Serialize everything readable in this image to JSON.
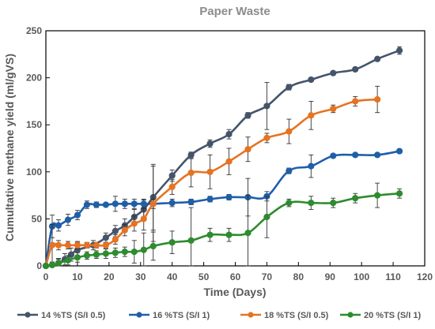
{
  "chart_data": {
    "type": "line",
    "title": "Paper Waste",
    "xlabel": "Time (Days)",
    "ylabel": "Cumultative methane yield (ml/gVS)",
    "xlim": [
      0,
      120
    ],
    "ylim": [
      0,
      250
    ],
    "x_ticks": [
      0,
      10,
      20,
      30,
      40,
      50,
      60,
      70,
      80,
      90,
      100,
      110,
      120
    ],
    "y_ticks": [
      0,
      50,
      100,
      150,
      200,
      250
    ],
    "grid": false,
    "legend_position": "bottom",
    "series": [
      {
        "name": "14 %TS (S/I 0.5)",
        "color": "#44546a",
        "points": [
          {
            "x": 0,
            "y": 0,
            "err": 0
          },
          {
            "x": 2,
            "y": 1,
            "err": 3
          },
          {
            "x": 4,
            "y": 3,
            "err": 5
          },
          {
            "x": 6,
            "y": 7,
            "err": 6
          },
          {
            "x": 8,
            "y": 12,
            "err": 7
          },
          {
            "x": 10,
            "y": 17,
            "err": 8
          },
          {
            "x": 15,
            "y": 22,
            "err": 5
          },
          {
            "x": 19,
            "y": 30,
            "err": 5
          },
          {
            "x": 22,
            "y": 37,
            "err": 6
          },
          {
            "x": 25,
            "y": 43,
            "err": 7
          },
          {
            "x": 28,
            "y": 52,
            "err": 8
          },
          {
            "x": 31,
            "y": 60,
            "err": 10
          },
          {
            "x": 34,
            "y": 73,
            "err": 35
          },
          {
            "x": 40,
            "y": 96,
            "err": 6
          },
          {
            "x": 46,
            "y": 118,
            "err": 3
          },
          {
            "x": 52,
            "y": 130,
            "err": 4
          },
          {
            "x": 58,
            "y": 140,
            "err": 5
          },
          {
            "x": 64,
            "y": 160,
            "err": 3
          },
          {
            "x": 70,
            "y": 170,
            "err": 25
          },
          {
            "x": 77,
            "y": 190,
            "err": 3
          },
          {
            "x": 84,
            "y": 198,
            "err": 2
          },
          {
            "x": 91,
            "y": 205,
            "err": 2
          },
          {
            "x": 98,
            "y": 209,
            "err": 2
          },
          {
            "x": 105,
            "y": 220,
            "err": 2
          },
          {
            "x": 112,
            "y": 229,
            "err": 4
          }
        ]
      },
      {
        "name": "16 %TS (S/I  1)",
        "color": "#1f5fa8",
        "points": [
          {
            "x": 0,
            "y": 0,
            "err": 0
          },
          {
            "x": 2,
            "y": 42,
            "err": 12
          },
          {
            "x": 4,
            "y": 43,
            "err": 6
          },
          {
            "x": 7,
            "y": 49,
            "err": 6
          },
          {
            "x": 10,
            "y": 54,
            "err": 5
          },
          {
            "x": 13,
            "y": 65,
            "err": 4
          },
          {
            "x": 16,
            "y": 65,
            "err": 3
          },
          {
            "x": 19,
            "y": 65,
            "err": 2
          },
          {
            "x": 22,
            "y": 66,
            "err": 8
          },
          {
            "x": 25,
            "y": 66,
            "err": 5
          },
          {
            "x": 28,
            "y": 66,
            "err": 5
          },
          {
            "x": 31,
            "y": 66,
            "err": 5
          },
          {
            "x": 34,
            "y": 66,
            "err": 5
          },
          {
            "x": 40,
            "y": 67,
            "err": 4
          },
          {
            "x": 46,
            "y": 68,
            "err": 3
          },
          {
            "x": 52,
            "y": 71,
            "err": 3
          },
          {
            "x": 58,
            "y": 73,
            "err": 3
          },
          {
            "x": 64,
            "y": 73,
            "err": 20
          },
          {
            "x": 70,
            "y": 74,
            "err": 5
          },
          {
            "x": 77,
            "y": 101,
            "err": 3
          },
          {
            "x": 84,
            "y": 106,
            "err": 12
          },
          {
            "x": 91,
            "y": 117,
            "err": 2
          },
          {
            "x": 98,
            "y": 118,
            "err": 2
          },
          {
            "x": 105,
            "y": 118,
            "err": 2
          },
          {
            "x": 112,
            "y": 122,
            "err": 2
          }
        ]
      },
      {
        "name": "18 %TS (S/I  0.5)",
        "color": "#e67321",
        "points": [
          {
            "x": 0,
            "y": 0,
            "err": 0
          },
          {
            "x": 2,
            "y": 22,
            "err": 22
          },
          {
            "x": 4,
            "y": 22,
            "err": 5
          },
          {
            "x": 7,
            "y": 22,
            "err": 4
          },
          {
            "x": 10,
            "y": 22,
            "err": 4
          },
          {
            "x": 13,
            "y": 22,
            "err": 3
          },
          {
            "x": 16,
            "y": 22,
            "err": 3
          },
          {
            "x": 19,
            "y": 22,
            "err": 3
          },
          {
            "x": 22,
            "y": 28,
            "err": 5
          },
          {
            "x": 25,
            "y": 38,
            "err": 6
          },
          {
            "x": 28,
            "y": 45,
            "err": 8
          },
          {
            "x": 31,
            "y": 50,
            "err": 12
          },
          {
            "x": 34,
            "y": 66,
            "err": 40
          },
          {
            "x": 40,
            "y": 84,
            "err": 8
          },
          {
            "x": 46,
            "y": 99,
            "err": 15
          },
          {
            "x": 52,
            "y": 100,
            "err": 18
          },
          {
            "x": 58,
            "y": 111,
            "err": 14
          },
          {
            "x": 64,
            "y": 124,
            "err": 13
          },
          {
            "x": 70,
            "y": 136,
            "err": 5
          },
          {
            "x": 77,
            "y": 143,
            "err": 13
          },
          {
            "x": 84,
            "y": 160,
            "err": 15
          },
          {
            "x": 91,
            "y": 167,
            "err": 4
          },
          {
            "x": 98,
            "y": 175,
            "err": 5
          },
          {
            "x": 105,
            "y": 177,
            "err": 14
          }
        ]
      },
      {
        "name": "20 %TS (S/I  1)",
        "color": "#2e8b2e",
        "points": [
          {
            "x": 0,
            "y": 0,
            "err": 0
          },
          {
            "x": 2,
            "y": 1,
            "err": 3
          },
          {
            "x": 4,
            "y": 3,
            "err": 4
          },
          {
            "x": 7,
            "y": 6,
            "err": 5
          },
          {
            "x": 10,
            "y": 9,
            "err": 5
          },
          {
            "x": 13,
            "y": 11,
            "err": 4
          },
          {
            "x": 16,
            "y": 12,
            "err": 4
          },
          {
            "x": 19,
            "y": 13,
            "err": 5
          },
          {
            "x": 22,
            "y": 14,
            "err": 5
          },
          {
            "x": 25,
            "y": 15,
            "err": 5
          },
          {
            "x": 28,
            "y": 15,
            "err": 12
          },
          {
            "x": 31,
            "y": 17,
            "err": 18
          },
          {
            "x": 34,
            "y": 21,
            "err": 15
          },
          {
            "x": 40,
            "y": 25,
            "err": 12
          },
          {
            "x": 46,
            "y": 27,
            "err": 35
          },
          {
            "x": 52,
            "y": 33,
            "err": 7
          },
          {
            "x": 58,
            "y": 33,
            "err": 7
          },
          {
            "x": 64,
            "y": 35,
            "err": 40
          },
          {
            "x": 70,
            "y": 52,
            "err": 22
          },
          {
            "x": 77,
            "y": 67,
            "err": 4
          },
          {
            "x": 84,
            "y": 67,
            "err": 7
          },
          {
            "x": 91,
            "y": 67,
            "err": 5
          },
          {
            "x": 98,
            "y": 72,
            "err": 5
          },
          {
            "x": 105,
            "y": 75,
            "err": 13
          },
          {
            "x": 112,
            "y": 77,
            "err": 5
          }
        ]
      }
    ]
  }
}
